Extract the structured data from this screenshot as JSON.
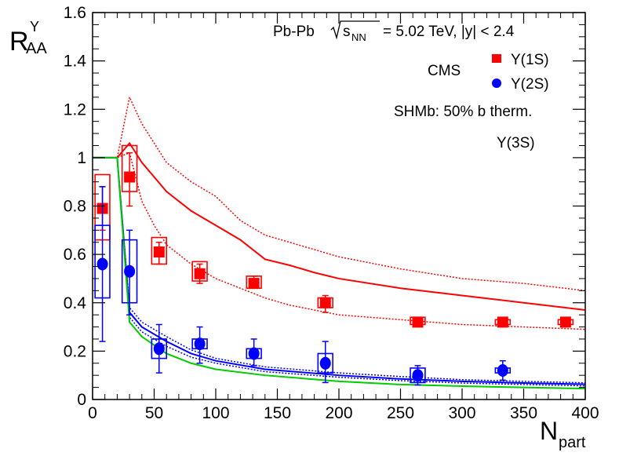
{
  "chart_data": {
    "type": "scatter",
    "title": "",
    "xlabel_main": "N",
    "xlabel_sub": "part",
    "ylabel_main": "R",
    "ylabel_sub": "AA",
    "ylabel_sup": "Υ",
    "xlim": [
      0,
      400
    ],
    "ylim": [
      0,
      1.6
    ],
    "xticks": [
      0,
      50,
      100,
      150,
      200,
      250,
      300,
      350,
      400
    ],
    "yticks": [
      0,
      0.2,
      0.4,
      0.6,
      0.8,
      1,
      1.2,
      1.4,
      1.6
    ],
    "ytick_labels": [
      "0",
      "0.2",
      "0.4",
      "0.6",
      "0.8",
      "1",
      "1.2",
      "1.4",
      "1.6"
    ],
    "annotations": {
      "system": "Pb-Pb",
      "sqrt": "s",
      "sqrt_sub": "NN",
      "energy": "= 5.02 TeV, |y| < 2.4",
      "experiment": "CMS",
      "model": "SHMb: 50% b therm."
    },
    "legend": [
      {
        "label": "Υ(1S)",
        "marker": "square",
        "color": "#ff0000"
      },
      {
        "label": "Υ(2S)",
        "marker": "circle",
        "color": "#0000ff"
      },
      {
        "label": "Υ(3S)",
        "marker": "line",
        "color": "#00cc00"
      }
    ],
    "series": [
      {
        "name": "Υ(1S)",
        "marker": "square",
        "color": "#ff0000",
        "points": [
          {
            "x": 8,
            "y": 0.79,
            "stat_lo": 0.7,
            "stat_hi": 0.88,
            "sys_lo": 0.66,
            "sys_hi": 0.93,
            "box_w": 6
          },
          {
            "x": 30,
            "y": 0.92,
            "stat_lo": 0.8,
            "stat_hi": 1.02,
            "sys_lo": 0.86,
            "sys_hi": 1.05,
            "box_w": 6
          },
          {
            "x": 54,
            "y": 0.61,
            "stat_lo": 0.56,
            "stat_hi": 0.65,
            "sys_lo": 0.56,
            "sys_hi": 0.67,
            "box_w": 6
          },
          {
            "x": 87,
            "y": 0.52,
            "stat_lo": 0.48,
            "stat_hi": 0.56,
            "sys_lo": 0.49,
            "sys_hi": 0.57,
            "box_w": 6
          },
          {
            "x": 131,
            "y": 0.48,
            "stat_lo": 0.46,
            "stat_hi": 0.51,
            "sys_lo": 0.46,
            "sys_hi": 0.51,
            "box_w": 6
          },
          {
            "x": 189,
            "y": 0.4,
            "stat_lo": 0.36,
            "stat_hi": 0.43,
            "sys_lo": 0.38,
            "sys_hi": 0.42,
            "box_w": 6
          },
          {
            "x": 264,
            "y": 0.32,
            "stat_lo": 0.31,
            "stat_hi": 0.33,
            "sys_lo": 0.31,
            "sys_hi": 0.34,
            "box_w": 6
          },
          {
            "x": 333,
            "y": 0.32,
            "stat_lo": 0.31,
            "stat_hi": 0.33,
            "sys_lo": 0.31,
            "sys_hi": 0.33,
            "box_w": 6
          },
          {
            "x": 384,
            "y": 0.32,
            "stat_lo": 0.31,
            "stat_hi": 0.33,
            "sys_lo": 0.31,
            "sys_hi": 0.33,
            "box_w": 6
          }
        ]
      },
      {
        "name": "Υ(2S)",
        "marker": "circle",
        "color": "#0000ff",
        "points": [
          {
            "x": 8,
            "y": 0.56,
            "stat_lo": 0.24,
            "stat_hi": 0.88,
            "sys_lo": 0.42,
            "sys_hi": 0.72,
            "box_w": 6
          },
          {
            "x": 30,
            "y": 0.53,
            "stat_lo": 0.35,
            "stat_hi": 0.7,
            "sys_lo": 0.4,
            "sys_hi": 0.66,
            "box_w": 6
          },
          {
            "x": 54,
            "y": 0.21,
            "stat_lo": 0.11,
            "stat_hi": 0.31,
            "sys_lo": 0.17,
            "sys_hi": 0.25,
            "box_w": 6
          },
          {
            "x": 87,
            "y": 0.23,
            "stat_lo": 0.15,
            "stat_hi": 0.3,
            "sys_lo": 0.21,
            "sys_hi": 0.25,
            "box_w": 6
          },
          {
            "x": 131,
            "y": 0.19,
            "stat_lo": 0.14,
            "stat_hi": 0.25,
            "sys_lo": 0.17,
            "sys_hi": 0.21,
            "box_w": 6
          },
          {
            "x": 189,
            "y": 0.15,
            "stat_lo": 0.07,
            "stat_hi": 0.24,
            "sys_lo": 0.11,
            "sys_hi": 0.19,
            "box_w": 6
          },
          {
            "x": 264,
            "y": 0.1,
            "stat_lo": 0.06,
            "stat_hi": 0.14,
            "sys_lo": 0.07,
            "sys_hi": 0.13,
            "box_w": 6
          },
          {
            "x": 333,
            "y": 0.12,
            "stat_lo": 0.08,
            "stat_hi": 0.16,
            "sys_lo": 0.11,
            "sys_hi": 0.13,
            "box_w": 6
          }
        ]
      }
    ],
    "model_curves": [
      {
        "name": "SHMb Υ(1S) central",
        "color": "#ff0000",
        "style": "solid",
        "x": [
          0,
          20,
          30,
          40,
          50,
          60,
          80,
          100,
          120,
          140,
          160,
          180,
          200,
          250,
          300,
          350,
          400
        ],
        "y": [
          1,
          1,
          1.06,
          0.98,
          0.92,
          0.86,
          0.78,
          0.72,
          0.66,
          0.58,
          0.555,
          0.525,
          0.5,
          0.46,
          0.43,
          0.4,
          0.37
        ]
      },
      {
        "name": "SHMb Υ(1S) upper",
        "color": "#ff0000",
        "style": "dotted",
        "x": [
          0,
          20,
          30,
          40,
          50,
          60,
          80,
          100,
          120,
          140,
          160,
          180,
          200,
          250,
          300,
          350,
          400
        ],
        "y": [
          1,
          1,
          1.25,
          1.14,
          1.06,
          0.98,
          0.9,
          0.84,
          0.74,
          0.68,
          0.65,
          0.62,
          0.59,
          0.54,
          0.5,
          0.48,
          0.45
        ]
      },
      {
        "name": "SHMb Υ(1S) lower",
        "color": "#ff0000",
        "style": "dotted",
        "x": [
          0,
          20,
          30,
          40,
          50,
          60,
          80,
          100,
          120,
          140,
          160,
          180,
          200,
          250,
          300,
          350,
          400
        ],
        "y": [
          1,
          1,
          1.02,
          0.82,
          0.72,
          0.64,
          0.56,
          0.5,
          0.46,
          0.42,
          0.39,
          0.37,
          0.35,
          0.33,
          0.31,
          0.3,
          0.29
        ]
      },
      {
        "name": "SHMb Υ(2S) central",
        "color": "#0000ff",
        "style": "solid",
        "x": [
          0,
          20,
          30,
          40,
          60,
          80,
          100,
          140,
          200,
          250,
          300,
          350,
          400
        ],
        "y": [
          1,
          1,
          0.36,
          0.3,
          0.24,
          0.19,
          0.16,
          0.125,
          0.1,
          0.085,
          0.075,
          0.068,
          0.063
        ]
      },
      {
        "name": "SHMb Υ(2S) upper",
        "color": "#0000ff",
        "style": "dotted",
        "x": [
          0,
          20,
          30,
          40,
          60,
          80,
          100,
          140,
          200,
          250,
          300,
          350,
          400
        ],
        "y": [
          1,
          1,
          0.38,
          0.32,
          0.26,
          0.205,
          0.17,
          0.135,
          0.11,
          0.095,
          0.082,
          0.075,
          0.069
        ]
      },
      {
        "name": "SHMb Υ(2S) lower",
        "color": "#0000ff",
        "style": "dotted",
        "x": [
          0,
          20,
          30,
          40,
          60,
          80,
          100,
          140,
          200,
          250,
          300,
          350,
          400
        ],
        "y": [
          1,
          1,
          0.34,
          0.28,
          0.22,
          0.175,
          0.15,
          0.115,
          0.092,
          0.078,
          0.068,
          0.062,
          0.056
        ]
      },
      {
        "name": "SHMb Υ(3S)",
        "color": "#00cc00",
        "style": "solid",
        "x": [
          0,
          20,
          30,
          40,
          60,
          80,
          100,
          140,
          200,
          250,
          300,
          350,
          400
        ],
        "y": [
          1,
          1,
          0.32,
          0.26,
          0.19,
          0.15,
          0.125,
          0.1,
          0.075,
          0.062,
          0.055,
          0.05,
          0.045
        ]
      }
    ]
  }
}
